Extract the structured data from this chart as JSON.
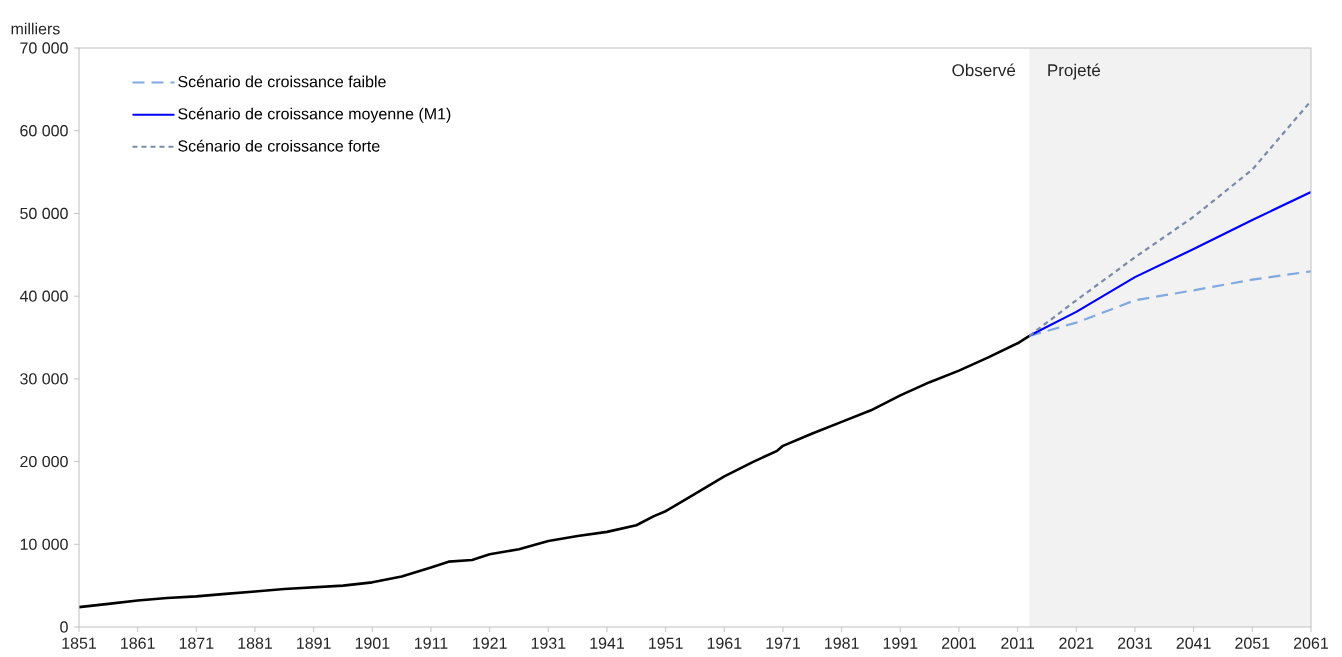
{
  "chart_data": {
    "type": "line",
    "ylabel": "milliers",
    "xlim": [
      1851,
      2061
    ],
    "ylim": [
      0,
      70000
    ],
    "xticks": [
      1851,
      1861,
      1871,
      1881,
      1891,
      1901,
      1911,
      1921,
      1931,
      1941,
      1951,
      1961,
      1971,
      1981,
      1991,
      2001,
      2011,
      2021,
      2031,
      2041,
      2051,
      2061
    ],
    "yticks": [
      {
        "value": 0,
        "label": "0"
      },
      {
        "value": 10000,
        "label": "10 000"
      },
      {
        "value": 20000,
        "label": "20 000"
      },
      {
        "value": 30000,
        "label": "30 000"
      },
      {
        "value": 40000,
        "label": "40 000"
      },
      {
        "value": 50000,
        "label": "50 000"
      },
      {
        "value": 60000,
        "label": "60 000"
      },
      {
        "value": 70000,
        "label": "70 000"
      }
    ],
    "grid": false,
    "legend": "top left",
    "bands": [
      {
        "axis": "x",
        "from": 2013,
        "to": 2061,
        "label": "Projeté",
        "color": "#f2f2f2"
      }
    ],
    "annotations": [
      "Observé"
    ],
    "series": [
      {
        "color": "#000000",
        "line_style": "solid",
        "x": [
          1851,
          1856,
          1861,
          1866,
          1871,
          1876,
          1881,
          1886,
          1891,
          1896,
          1901,
          1906,
          1911,
          1914,
          1918,
          1921,
          1926,
          1931,
          1936,
          1941,
          1946,
          1949,
          1951,
          1956,
          1961,
          1966,
          1970,
          1971,
          1976,
          1981,
          1986,
          1991,
          1996,
          2001,
          2006,
          2011,
          2013
        ],
        "values": [
          2400,
          2800,
          3200,
          3500,
          3700,
          4000,
          4300,
          4600,
          4800,
          5000,
          5400,
          6100,
          7200,
          7900,
          8100,
          8800,
          9400,
          10400,
          11000,
          11500,
          12300,
          13400,
          14000,
          16100,
          18200,
          20000,
          21300,
          21900,
          23400,
          24800,
          26200,
          28000,
          29600,
          31000,
          32600,
          34300,
          35200
        ]
      },
      {
        "name": "Scénario de croissance faible",
        "color": "#7fa9e0",
        "line_style": "dashed",
        "x": [
          2013,
          2021,
          2031,
          2041,
          2051,
          2061
        ],
        "values": [
          35200,
          36800,
          39500,
          40700,
          42000,
          43000
        ]
      },
      {
        "name": "Scénario de croissance moyenne (M1)",
        "color": "#0000ff",
        "line_style": "solid",
        "x": [
          2013,
          2021,
          2031,
          2041,
          2051,
          2061
        ],
        "values": [
          35200,
          38100,
          42300,
          45700,
          49200,
          52600
        ]
      },
      {
        "name": "Scénario de croissance forte",
        "color": "#7a8aa8",
        "line_style": "dotted",
        "x": [
          2013,
          2021,
          2031,
          2041,
          2051,
          2061
        ],
        "values": [
          35200,
          39500,
          44700,
          49600,
          55300,
          63600
        ]
      }
    ]
  }
}
